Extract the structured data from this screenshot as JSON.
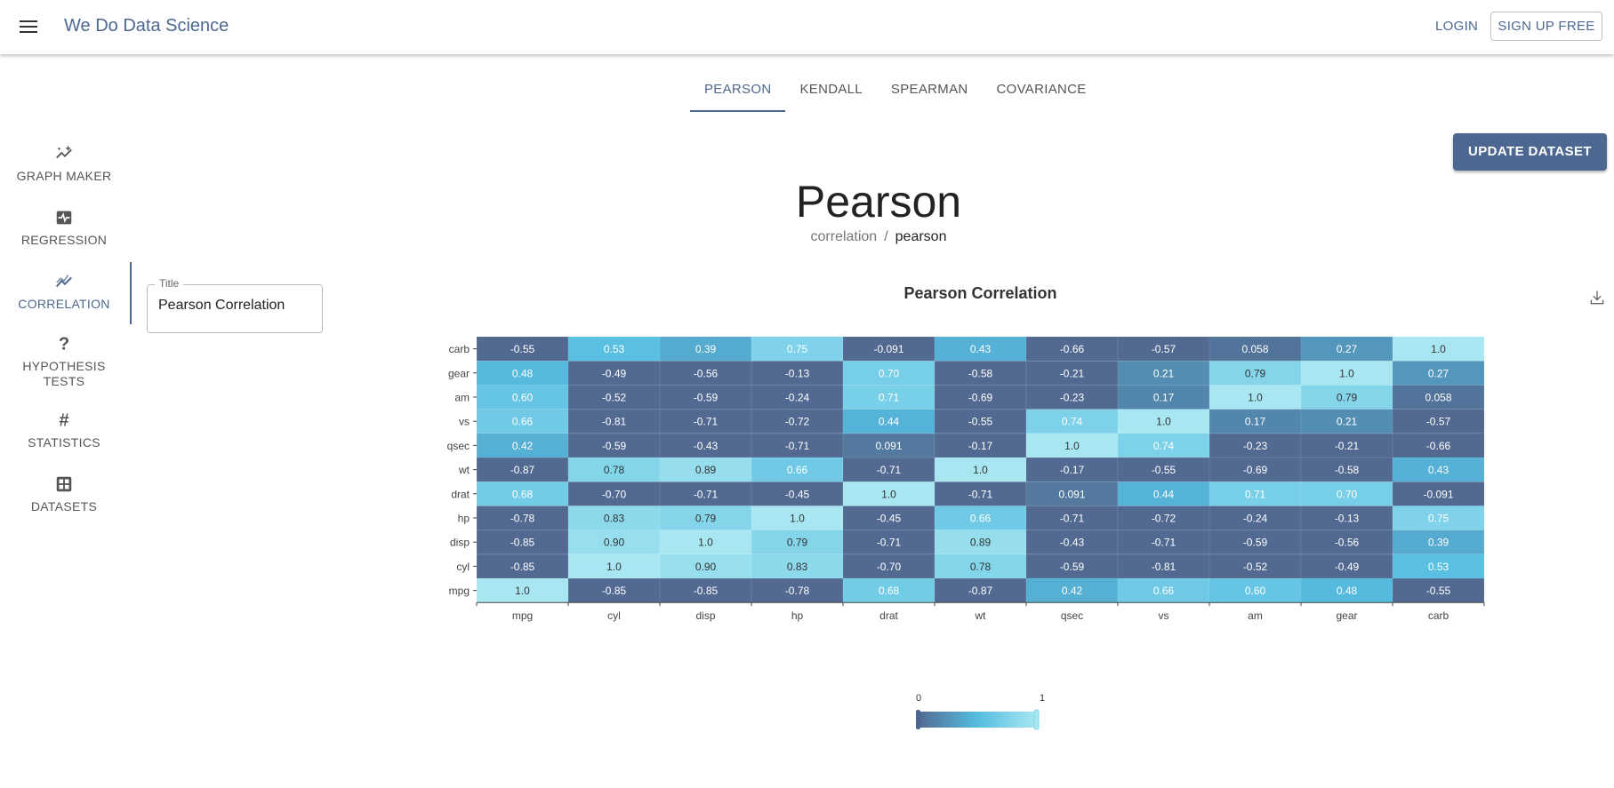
{
  "topbar": {
    "menu_icon": "hamburger-menu-icon",
    "brand": "We Do Data Science",
    "login": "LOGIN",
    "signup": "SIGN UP FREE"
  },
  "tabs": [
    {
      "label": "PEARSON",
      "active": true
    },
    {
      "label": "KENDALL",
      "active": false
    },
    {
      "label": "SPEARMAN",
      "active": false
    },
    {
      "label": "COVARIANCE",
      "active": false
    }
  ],
  "sidebar": {
    "items": [
      {
        "label": "GRAPH MAKER",
        "icon": "sparkle-chart-icon"
      },
      {
        "label": "REGRESSION",
        "icon": "pulse-monitor-icon"
      },
      {
        "label": "CORRELATION",
        "icon": "line-trend-icon",
        "active": true
      },
      {
        "label": "HYPOTHESIS TESTS",
        "icon": "question-mark-icon"
      },
      {
        "label": "STATISTICS",
        "icon": "hash-icon"
      },
      {
        "label": "DATASETS",
        "icon": "grid-icon"
      }
    ]
  },
  "title_field": {
    "legend": "Title",
    "value": "Pearson Correlation"
  },
  "update_button": "UPDATE DATASET",
  "page": {
    "title": "Pearson",
    "breadcrumb": [
      "correlation",
      "pearson"
    ],
    "breadcrumb_separator": "/"
  },
  "colors": {
    "accent": "#4d6890",
    "low": "#526a91",
    "mid": "#55bde0",
    "high": "#a8e7f2"
  },
  "chart_data": {
    "type": "heatmap",
    "title": "Pearson Correlation",
    "x": [
      "mpg",
      "cyl",
      "disp",
      "hp",
      "drat",
      "wt",
      "qsec",
      "vs",
      "am",
      "gear",
      "carb"
    ],
    "y": [
      "mpg",
      "cyl",
      "disp",
      "hp",
      "drat",
      "wt",
      "qsec",
      "vs",
      "am",
      "gear",
      "carb"
    ],
    "values": [
      [
        "1.0",
        "-0.85",
        "-0.85",
        "-0.78",
        "0.68",
        "-0.87",
        "0.42",
        "0.66",
        "0.60",
        "0.48",
        "-0.55"
      ],
      [
        "-0.85",
        "1.0",
        "0.90",
        "0.83",
        "-0.70",
        "0.78",
        "-0.59",
        "-0.81",
        "-0.52",
        "-0.49",
        "0.53"
      ],
      [
        "-0.85",
        "0.90",
        "1.0",
        "0.79",
        "-0.71",
        "0.89",
        "-0.43",
        "-0.71",
        "-0.59",
        "-0.56",
        "0.39"
      ],
      [
        "-0.78",
        "0.83",
        "0.79",
        "1.0",
        "-0.45",
        "0.66",
        "-0.71",
        "-0.72",
        "-0.24",
        "-0.13",
        "0.75"
      ],
      [
        "0.68",
        "-0.70",
        "-0.71",
        "-0.45",
        "1.0",
        "-0.71",
        "0.091",
        "0.44",
        "0.71",
        "0.70",
        "-0.091"
      ],
      [
        "-0.87",
        "0.78",
        "0.89",
        "0.66",
        "-0.71",
        "1.0",
        "-0.17",
        "-0.55",
        "-0.69",
        "-0.58",
        "0.43"
      ],
      [
        "0.42",
        "-0.59",
        "-0.43",
        "-0.71",
        "0.091",
        "-0.17",
        "1.0",
        "0.74",
        "-0.23",
        "-0.21",
        "-0.66"
      ],
      [
        "0.66",
        "-0.81",
        "-0.71",
        "-0.72",
        "0.44",
        "-0.55",
        "0.74",
        "1.0",
        "0.17",
        "0.21",
        "-0.57"
      ],
      [
        "0.60",
        "-0.52",
        "-0.59",
        "-0.24",
        "0.71",
        "-0.69",
        "-0.23",
        "0.17",
        "1.0",
        "0.79",
        "0.058"
      ],
      [
        "0.48",
        "-0.49",
        "-0.56",
        "-0.13",
        "0.70",
        "-0.58",
        "-0.21",
        "0.21",
        "0.79",
        "1.0",
        "0.27"
      ],
      [
        "-0.55",
        "0.53",
        "0.39",
        "0.75",
        "-0.091",
        "0.43",
        "-0.66",
        "-0.57",
        "0.058",
        "0.27",
        "1.0"
      ]
    ],
    "color_range": [
      0,
      1
    ],
    "legend_min_label": "0",
    "legend_max_label": "1",
    "download_icon": "download-icon"
  }
}
